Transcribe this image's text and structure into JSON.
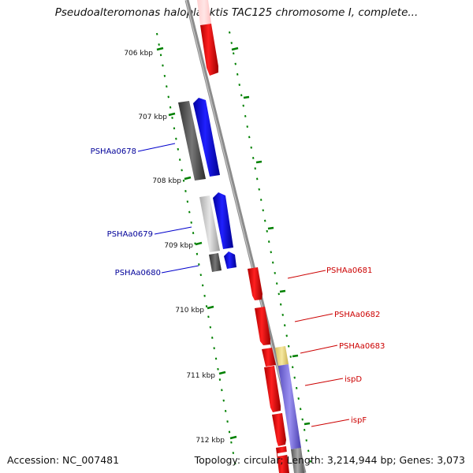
{
  "title": "Pseudoalteromonas haloplanktis TAC125 chromosome I, complete...",
  "footer": {
    "accession": "Accession: NC_007481",
    "summary": "Topology: circular; Length: 3,214,944 bp; Genes: 3,073"
  },
  "colors": {
    "forward_cds": "#ff0000",
    "reverse_cds": "#0000ff",
    "gene_track": "#444444",
    "gene_track_light": "#cccccc",
    "other_feature_yellow": "#f2e08c",
    "other_feature_purple": "#8a7fe0",
    "tick": "#008000",
    "backbone": "#888888",
    "label_forward": "#cc0000",
    "label_reverse": "#000099"
  },
  "axis": {
    "unit": "kbp",
    "ticks": [
      "706 kbp",
      "707 kbp",
      "708 kbp",
      "709 kbp",
      "710 kbp",
      "711 kbp",
      "712 kbp"
    ]
  },
  "genes": [
    {
      "label": "PSHAa0678",
      "strand": "reverse"
    },
    {
      "label": "PSHAa0679",
      "strand": "reverse"
    },
    {
      "label": "PSHAa0680",
      "strand": "reverse"
    },
    {
      "label": "PSHAa0681",
      "strand": "forward"
    },
    {
      "label": "PSHAa0682",
      "strand": "forward"
    },
    {
      "label": "PSHAa0683",
      "strand": "forward"
    },
    {
      "label": "ispD",
      "strand": "forward"
    },
    {
      "label": "ispF",
      "strand": "forward"
    }
  ]
}
